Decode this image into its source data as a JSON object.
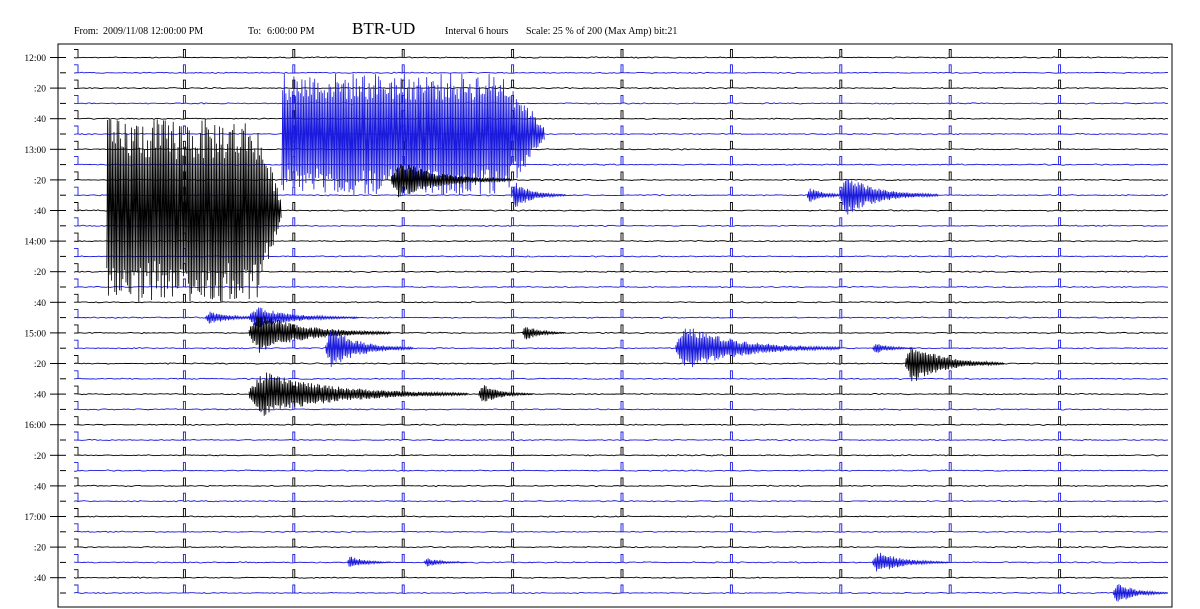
{
  "header": {
    "from_prefix": "From:",
    "from_value": "2009/11/08  12:00:00 PM",
    "to_prefix": "To:",
    "to_value": "6:00:00  PM",
    "station": "BTR-UD",
    "interval": "Interval 6 hours",
    "scale": "Scale:  25 % of 200 (Max Amp) bit:21"
  },
  "chart_data": {
    "type": "line",
    "title": "BTR-UD",
    "subtitle": "From: 2009/11/08  12:00:00 PM  To: 6:00:00  PM   Interval 6 hours  Scale:  25 % of 200 (Max Amp) bit:21",
    "y_tick_labels": [
      "12:00",
      ":20",
      ":40",
      "13:00",
      ":20",
      ":40",
      "14:00",
      ":20",
      ":40",
      "15:00",
      ":20",
      ":40",
      "16:00",
      ":20",
      ":40",
      "17:00",
      ":20",
      ":40"
    ],
    "rows": 36,
    "row_minutes": 10,
    "row_colors": [
      "#000000",
      "#1a1adc"
    ],
    "minute_marks_per_row": 9,
    "events": [
      {
        "row": 5,
        "start_min": 1.9,
        "amp": 1.0,
        "dur_min": 2.4,
        "clip": true,
        "row_span": 8
      },
      {
        "row": 8,
        "start_min": 2.9,
        "amp": 0.9,
        "dur_min": 1.1,
        "clip": false
      },
      {
        "row": 9,
        "start_min": 4.0,
        "amp": 0.6,
        "dur_min": 0.5,
        "clip": false
      },
      {
        "row": 9,
        "start_min": 6.7,
        "amp": 0.35,
        "dur_min": 0.4,
        "clip": false
      },
      {
        "row": 9,
        "start_min": 7.0,
        "amp": 0.9,
        "dur_min": 0.9,
        "clip": false
      },
      {
        "row": 10,
        "start_min": 0.3,
        "amp": 1.0,
        "dur_min": 1.6,
        "clip": true,
        "row_span": 12
      },
      {
        "row": 17,
        "start_min": 1.2,
        "amp": 0.3,
        "dur_min": 0.6,
        "clip": false
      },
      {
        "row": 17,
        "start_min": 1.6,
        "amp": 0.5,
        "dur_min": 1.0,
        "clip": false
      },
      {
        "row": 18,
        "start_min": 1.6,
        "amp": 0.9,
        "dur_min": 1.3,
        "clip": false
      },
      {
        "row": 18,
        "start_min": 4.1,
        "amp": 0.35,
        "dur_min": 0.4,
        "clip": false
      },
      {
        "row": 19,
        "start_min": 2.3,
        "amp": 0.9,
        "dur_min": 0.8,
        "clip": false
      },
      {
        "row": 19,
        "start_min": 5.5,
        "amp": 1.0,
        "dur_min": 1.5,
        "clip": false
      },
      {
        "row": 19,
        "start_min": 7.3,
        "amp": 0.25,
        "dur_min": 0.4,
        "clip": false
      },
      {
        "row": 20,
        "start_min": 7.6,
        "amp": 0.9,
        "dur_min": 0.9,
        "clip": false
      },
      {
        "row": 22,
        "start_min": 1.6,
        "amp": 1.0,
        "dur_min": 2.0,
        "clip": false
      },
      {
        "row": 22,
        "start_min": 3.7,
        "amp": 0.45,
        "dur_min": 0.5,
        "clip": false
      },
      {
        "row": 33,
        "start_min": 2.5,
        "amp": 0.3,
        "dur_min": 0.4,
        "clip": false
      },
      {
        "row": 33,
        "start_min": 3.2,
        "amp": 0.2,
        "dur_min": 0.4,
        "clip": false
      },
      {
        "row": 33,
        "start_min": 7.3,
        "amp": 0.5,
        "dur_min": 0.7,
        "clip": false
      },
      {
        "row": 35,
        "start_min": 9.5,
        "amp": 0.5,
        "dur_min": 0.9,
        "clip": false
      }
    ]
  }
}
